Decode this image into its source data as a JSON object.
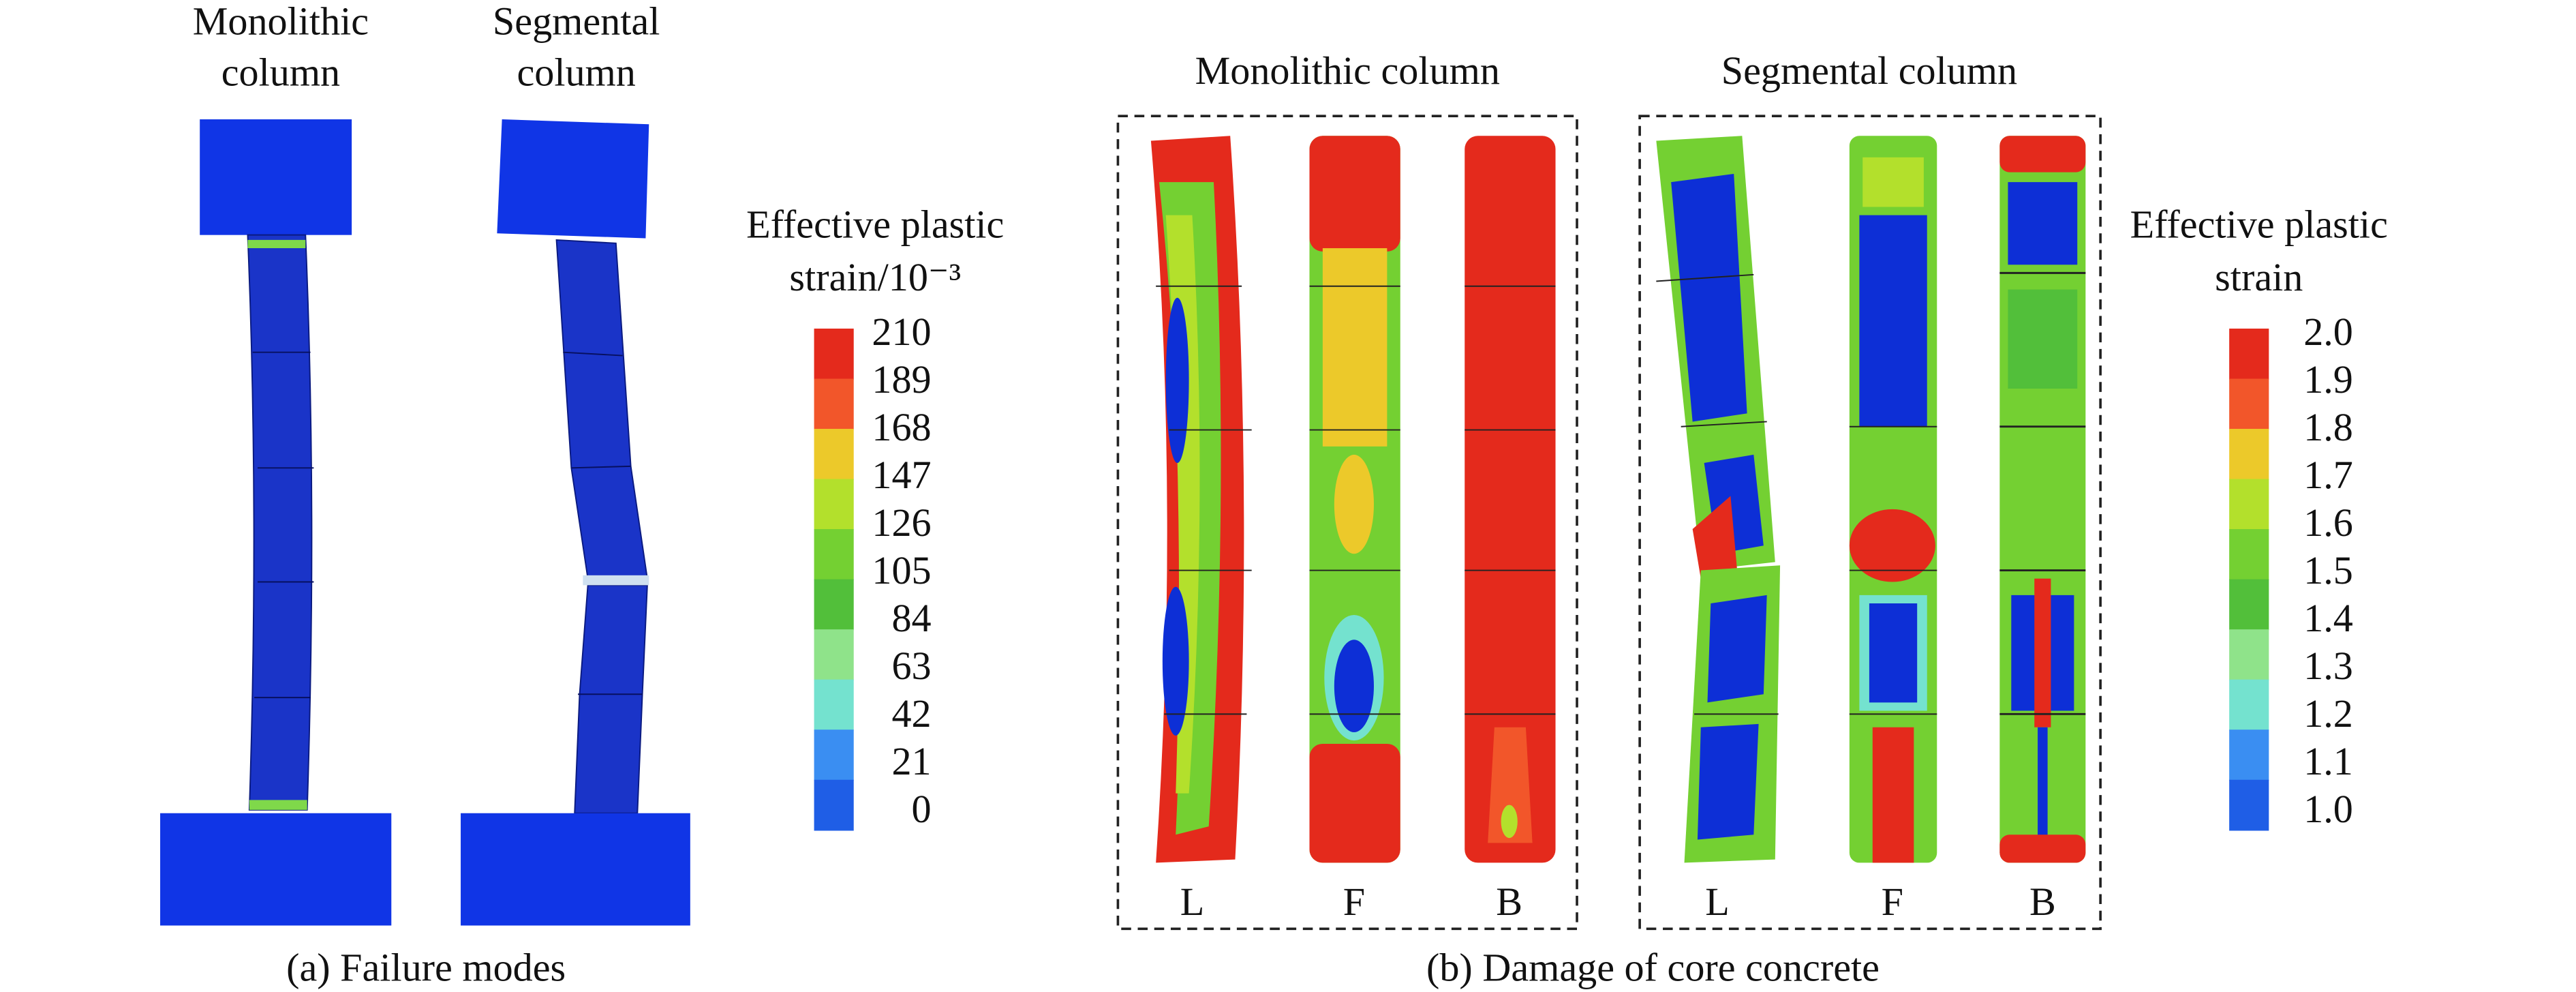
{
  "panel_a": {
    "column_labels": [
      [
        "Monolithic",
        "column"
      ],
      [
        "Segmental",
        "column"
      ]
    ],
    "caption": "(a) Failure modes"
  },
  "legend_a": {
    "title": [
      "Effective plastic",
      "strain/10⁻³"
    ],
    "labels": [
      "210",
      "189",
      "168",
      "147",
      "126",
      "105",
      "84",
      "63",
      "42",
      "21",
      "0"
    ],
    "colors": [
      "#e42a1c",
      "#f2562a",
      "#ecc92a",
      "#b3e02c",
      "#74d032",
      "#52bf3a",
      "#8fe38a",
      "#74e2cf",
      "#3a8ef2",
      "#1f5ee6",
      "#0d2fd6"
    ]
  },
  "panel_b": {
    "group_titles": [
      "Monolithic column",
      "Segmental column"
    ],
    "view_labels": [
      [
        "L",
        "F",
        "B"
      ],
      [
        "L",
        "F",
        "B"
      ]
    ],
    "caption": "(b) Damage of core concrete"
  },
  "legend_b": {
    "title": [
      "Effective plastic",
      "strain"
    ],
    "labels": [
      "2.0",
      "1.9",
      "1.8",
      "1.7",
      "1.6",
      "1.5",
      "1.4",
      "1.3",
      "1.2",
      "1.1",
      "1.0"
    ]
  }
}
